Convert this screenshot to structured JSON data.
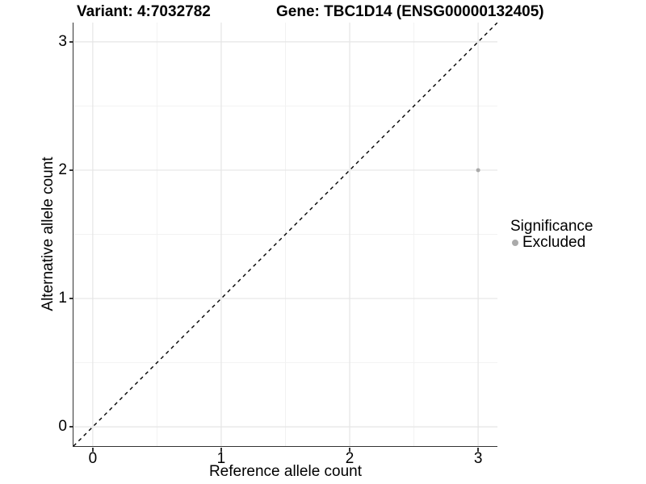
{
  "chart_data": {
    "type": "scatter",
    "title_left": "Variant: 4:7032782",
    "title_right": "Gene: TBC1D14 (ENSG00000132405)",
    "xlabel": "Reference allele count",
    "ylabel": "Alternative allele count",
    "xlim": [
      -0.15,
      3.15
    ],
    "ylim": [
      -0.15,
      3.15
    ],
    "xticks": [
      0,
      1,
      2,
      3
    ],
    "yticks": [
      0,
      1,
      2,
      3
    ],
    "x_minor_ticks": [
      0.5,
      1.5,
      2.5
    ],
    "y_minor_ticks": [
      0.5,
      1.5,
      2.5
    ],
    "grid": "major+minor",
    "reference_line": {
      "slope": 1,
      "intercept": 0,
      "style": "dashed",
      "color": "#000000"
    },
    "series": [
      {
        "name": "Excluded",
        "color": "#aaaaaa",
        "points": [
          {
            "x": 3,
            "y": 2
          }
        ]
      }
    ],
    "legend": {
      "title": "Significance",
      "position": "right",
      "entries": [
        {
          "label": "Excluded",
          "color": "#aaaaaa",
          "marker": "circle"
        }
      ]
    }
  },
  "colors": {
    "background": "#ffffff",
    "axis_line": "#333333",
    "grid_major": "#e5e5e5",
    "grid_minor": "#f2f2f2",
    "text": "#000000",
    "excluded": "#aaaaaa"
  }
}
